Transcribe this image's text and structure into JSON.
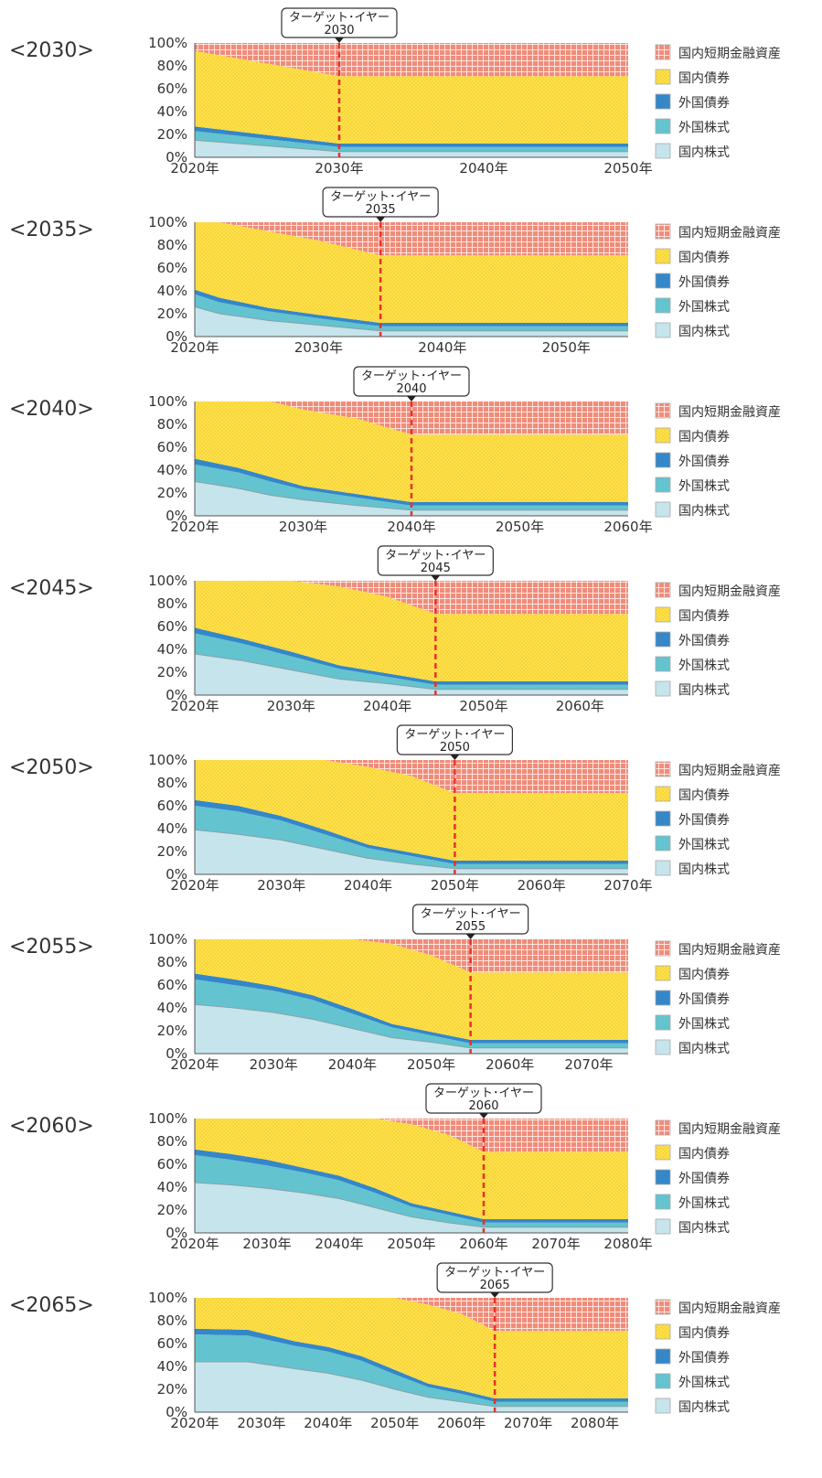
{
  "target_label": "ターゲット･イヤー",
  "legend": [
    {
      "name": "国内短期金融資産",
      "color": "#f08c7a",
      "pattern": "grid-red"
    },
    {
      "name": "国内債券",
      "color": "#ffe14a",
      "pattern": "dots-yellow"
    },
    {
      "name": "外国債券",
      "color": "#3487c8",
      "pattern": "solid"
    },
    {
      "name": "外国株式",
      "color": "#63c3cf",
      "pattern": "solid"
    },
    {
      "name": "国内株式",
      "color": "#c6e4eb",
      "pattern": "solid"
    }
  ],
  "colors": {
    "short_term": "#f08c7a",
    "domestic_bond": "#ffe14a",
    "foreign_bond": "#3487c8",
    "foreign_equity": "#63c3cf",
    "domestic_equity": "#c6e4eb",
    "target_line": "#e8312a"
  },
  "chart_data": [
    {
      "type": "area",
      "label": "<2030>",
      "target_year": "2030",
      "xlim": [
        2020,
        2050
      ],
      "xticks": [
        2020,
        2030,
        2040,
        2050
      ],
      "xtick_labels": [
        "2020年",
        "2030年",
        "2040年",
        "2050年"
      ],
      "ylim": [
        0,
        100
      ],
      "yticks": [
        "0%",
        "20%",
        "40%",
        "60%",
        "80%",
        "100%"
      ],
      "x": [
        2020,
        2030,
        2050
      ],
      "series": [
        {
          "name": "国内株式",
          "values": [
            15,
            5,
            5
          ]
        },
        {
          "name": "外国株式",
          "values": [
            8,
            4,
            4
          ]
        },
        {
          "name": "外国債券",
          "values": [
            4,
            3,
            3
          ]
        },
        {
          "name": "国内債券",
          "values": [
            66,
            59,
            59
          ]
        },
        {
          "name": "国内短期金融資産",
          "values": [
            7,
            29,
            29
          ]
        }
      ]
    },
    {
      "type": "area",
      "label": "<2035>",
      "target_year": "2035",
      "xlim": [
        2020,
        2055
      ],
      "xticks": [
        2020,
        2030,
        2040,
        2050
      ],
      "xtick_labels": [
        "2020年",
        "2030年",
        "2040年",
        "2050年"
      ],
      "ylim": [
        0,
        100
      ],
      "yticks": [
        "0%",
        "20%",
        "40%",
        "60%",
        "80%",
        "100%"
      ],
      "x": [
        2020,
        2022,
        2026,
        2030,
        2035,
        2055
      ],
      "series": [
        {
          "name": "国内株式",
          "values": [
            26,
            20,
            14,
            10,
            5,
            5
          ]
        },
        {
          "name": "外国株式",
          "values": [
            11,
            10,
            8,
            6,
            4,
            4
          ]
        },
        {
          "name": "外国債券",
          "values": [
            4,
            4,
            3,
            3,
            3,
            3
          ]
        },
        {
          "name": "国内債券",
          "values": [
            59,
            66,
            67,
            65,
            59,
            59
          ]
        },
        {
          "name": "国内短期金融資産",
          "values": [
            0,
            0,
            8,
            16,
            29,
            29
          ]
        }
      ]
    },
    {
      "type": "area",
      "label": "<2040>",
      "target_year": "2040",
      "xlim": [
        2020,
        2060
      ],
      "xticks": [
        2020,
        2030,
        2040,
        2050,
        2060
      ],
      "xtick_labels": [
        "2020年",
        "2030年",
        "2040年",
        "2050年",
        "2060年"
      ],
      "ylim": [
        0,
        100
      ],
      "yticks": [
        "0%",
        "20%",
        "40%",
        "60%",
        "80%",
        "100%"
      ],
      "x": [
        2020,
        2024,
        2027,
        2030,
        2035,
        2040,
        2060
      ],
      "series": [
        {
          "name": "国内株式",
          "values": [
            30,
            24,
            18,
            14,
            9,
            5,
            5
          ]
        },
        {
          "name": "外国株式",
          "values": [
            15,
            14,
            12,
            9,
            7,
            4,
            4
          ]
        },
        {
          "name": "外国債券",
          "values": [
            5,
            4,
            4,
            3,
            3,
            3,
            3
          ]
        },
        {
          "name": "国内債券",
          "values": [
            50,
            58,
            66,
            67,
            66,
            59,
            59
          ]
        },
        {
          "name": "国内短期金融資産",
          "values": [
            0,
            0,
            0,
            7,
            15,
            29,
            29
          ]
        }
      ]
    },
    {
      "type": "area",
      "label": "<2045>",
      "target_year": "2045",
      "xlim": [
        2020,
        2065
      ],
      "xticks": [
        2020,
        2030,
        2040,
        2050,
        2060
      ],
      "xtick_labels": [
        "2020年",
        "2030年",
        "2040年",
        "2050年",
        "2060年"
      ],
      "ylim": [
        0,
        100
      ],
      "yticks": [
        "0%",
        "20%",
        "40%",
        "60%",
        "80%",
        "100%"
      ],
      "x": [
        2020,
        2025,
        2030,
        2035,
        2040,
        2045,
        2065
      ],
      "series": [
        {
          "name": "国内株式",
          "values": [
            36,
            30,
            22,
            14,
            10,
            5,
            5
          ]
        },
        {
          "name": "外国株式",
          "values": [
            18,
            15,
            12,
            9,
            6,
            4,
            4
          ]
        },
        {
          "name": "外国債券",
          "values": [
            5,
            4,
            4,
            3,
            3,
            3,
            3
          ]
        },
        {
          "name": "国内債券",
          "values": [
            41,
            51,
            62,
            69,
            67,
            59,
            59
          ]
        },
        {
          "name": "国内短期金融資産",
          "values": [
            0,
            0,
            0,
            5,
            14,
            29,
            29
          ]
        }
      ]
    },
    {
      "type": "area",
      "label": "<2050>",
      "target_year": "2050",
      "xlim": [
        2020,
        2070
      ],
      "xticks": [
        2020,
        2030,
        2040,
        2050,
        2060,
        2070
      ],
      "xtick_labels": [
        "2020年",
        "2030年",
        "2040年",
        "2050年",
        "2060年",
        "2070年"
      ],
      "ylim": [
        0,
        100
      ],
      "yticks": [
        "0%",
        "20%",
        "40%",
        "60%",
        "80%",
        "100%"
      ],
      "x": [
        2020,
        2025,
        2030,
        2035,
        2040,
        2045,
        2050,
        2070
      ],
      "series": [
        {
          "name": "国内株式",
          "values": [
            39,
            35,
            30,
            22,
            14,
            9,
            5,
            5
          ]
        },
        {
          "name": "外国株式",
          "values": [
            21,
            20,
            17,
            13,
            9,
            7,
            4,
            4
          ]
        },
        {
          "name": "外国債券",
          "values": [
            5,
            5,
            4,
            4,
            3,
            3,
            3,
            3
          ]
        },
        {
          "name": "国内債券",
          "values": [
            35,
            40,
            49,
            61,
            68,
            67,
            59,
            59
          ]
        },
        {
          "name": "国内短期金融資産",
          "values": [
            0,
            0,
            0,
            0,
            6,
            14,
            29,
            29
          ]
        }
      ]
    },
    {
      "type": "area",
      "label": "<2055>",
      "target_year": "2055",
      "xlim": [
        2020,
        2075
      ],
      "xticks": [
        2020,
        2030,
        2040,
        2050,
        2060,
        2070
      ],
      "xtick_labels": [
        "2020年",
        "2030年",
        "2040年",
        "2050年",
        "2060年",
        "2070年"
      ],
      "ylim": [
        0,
        100
      ],
      "yticks": [
        "0%",
        "20%",
        "40%",
        "60%",
        "80%",
        "100%"
      ],
      "x": [
        2020,
        2025,
        2030,
        2035,
        2040,
        2045,
        2050,
        2055,
        2075
      ],
      "series": [
        {
          "name": "国内株式",
          "values": [
            43,
            40,
            36,
            30,
            22,
            14,
            10,
            5,
            5
          ]
        },
        {
          "name": "外国株式",
          "values": [
            22,
            20,
            19,
            17,
            13,
            9,
            6,
            4,
            4
          ]
        },
        {
          "name": "外国債券",
          "values": [
            5,
            5,
            4,
            4,
            4,
            3,
            3,
            3,
            3
          ]
        },
        {
          "name": "国内債券",
          "values": [
            30,
            35,
            41,
            49,
            61,
            70,
            67,
            59,
            59
          ]
        },
        {
          "name": "国内短期金融資産",
          "values": [
            0,
            0,
            0,
            0,
            0,
            4,
            14,
            29,
            29
          ]
        }
      ]
    },
    {
      "type": "area",
      "label": "<2060>",
      "target_year": "2060",
      "xlim": [
        2020,
        2080
      ],
      "xticks": [
        2020,
        2030,
        2040,
        2050,
        2060,
        2070,
        2080
      ],
      "xtick_labels": [
        "2020年",
        "2030年",
        "2040年",
        "2050年",
        "2060年",
        "2070年",
        "2080年"
      ],
      "ylim": [
        0,
        100
      ],
      "yticks": [
        "0%",
        "20%",
        "40%",
        "60%",
        "80%",
        "100%"
      ],
      "x": [
        2020,
        2025,
        2030,
        2035,
        2040,
        2045,
        2050,
        2055,
        2060,
        2080
      ],
      "series": [
        {
          "name": "国内株式",
          "values": [
            44,
            42,
            39,
            35,
            30,
            22,
            14,
            9,
            5,
            5
          ]
        },
        {
          "name": "外国株式",
          "values": [
            24,
            22,
            20,
            18,
            16,
            13,
            9,
            7,
            4,
            4
          ]
        },
        {
          "name": "外国債券",
          "values": [
            5,
            5,
            5,
            4,
            4,
            4,
            3,
            3,
            3,
            3
          ]
        },
        {
          "name": "国内債券",
          "values": [
            27,
            31,
            36,
            43,
            50,
            61,
            69,
            67,
            59,
            59
          ]
        },
        {
          "name": "国内短期金融資産",
          "values": [
            0,
            0,
            0,
            0,
            0,
            0,
            5,
            14,
            29,
            29
          ]
        }
      ]
    },
    {
      "type": "area",
      "label": "<2065>",
      "target_year": "2065",
      "xlim": [
        2020,
        2085
      ],
      "xticks": [
        2020,
        2030,
        2040,
        2050,
        2060,
        2070,
        2080
      ],
      "xtick_labels": [
        "2020年",
        "2030年",
        "2040年",
        "2050年",
        "2060年",
        "2070年",
        "2080年"
      ],
      "ylim": [
        0,
        100
      ],
      "yticks": [
        "0%",
        "20%",
        "40%",
        "60%",
        "80%",
        "100%"
      ],
      "x": [
        2020,
        2028,
        2035,
        2040,
        2045,
        2050,
        2055,
        2060,
        2065,
        2085
      ],
      "series": [
        {
          "name": "国内株式",
          "values": [
            44,
            44,
            38,
            34,
            28,
            20,
            13,
            9,
            5,
            5
          ]
        },
        {
          "name": "外国株式",
          "values": [
            24,
            23,
            20,
            19,
            17,
            13,
            9,
            7,
            4,
            4
          ]
        },
        {
          "name": "外国債券",
          "values": [
            5,
            5,
            4,
            4,
            4,
            4,
            3,
            3,
            3,
            3
          ]
        },
        {
          "name": "国内債券",
          "values": [
            27,
            28,
            38,
            43,
            51,
            63,
            69,
            67,
            59,
            59
          ]
        },
        {
          "name": "国内短期金融資産",
          "values": [
            0,
            0,
            0,
            0,
            0,
            0,
            6,
            14,
            29,
            29
          ]
        }
      ]
    }
  ]
}
